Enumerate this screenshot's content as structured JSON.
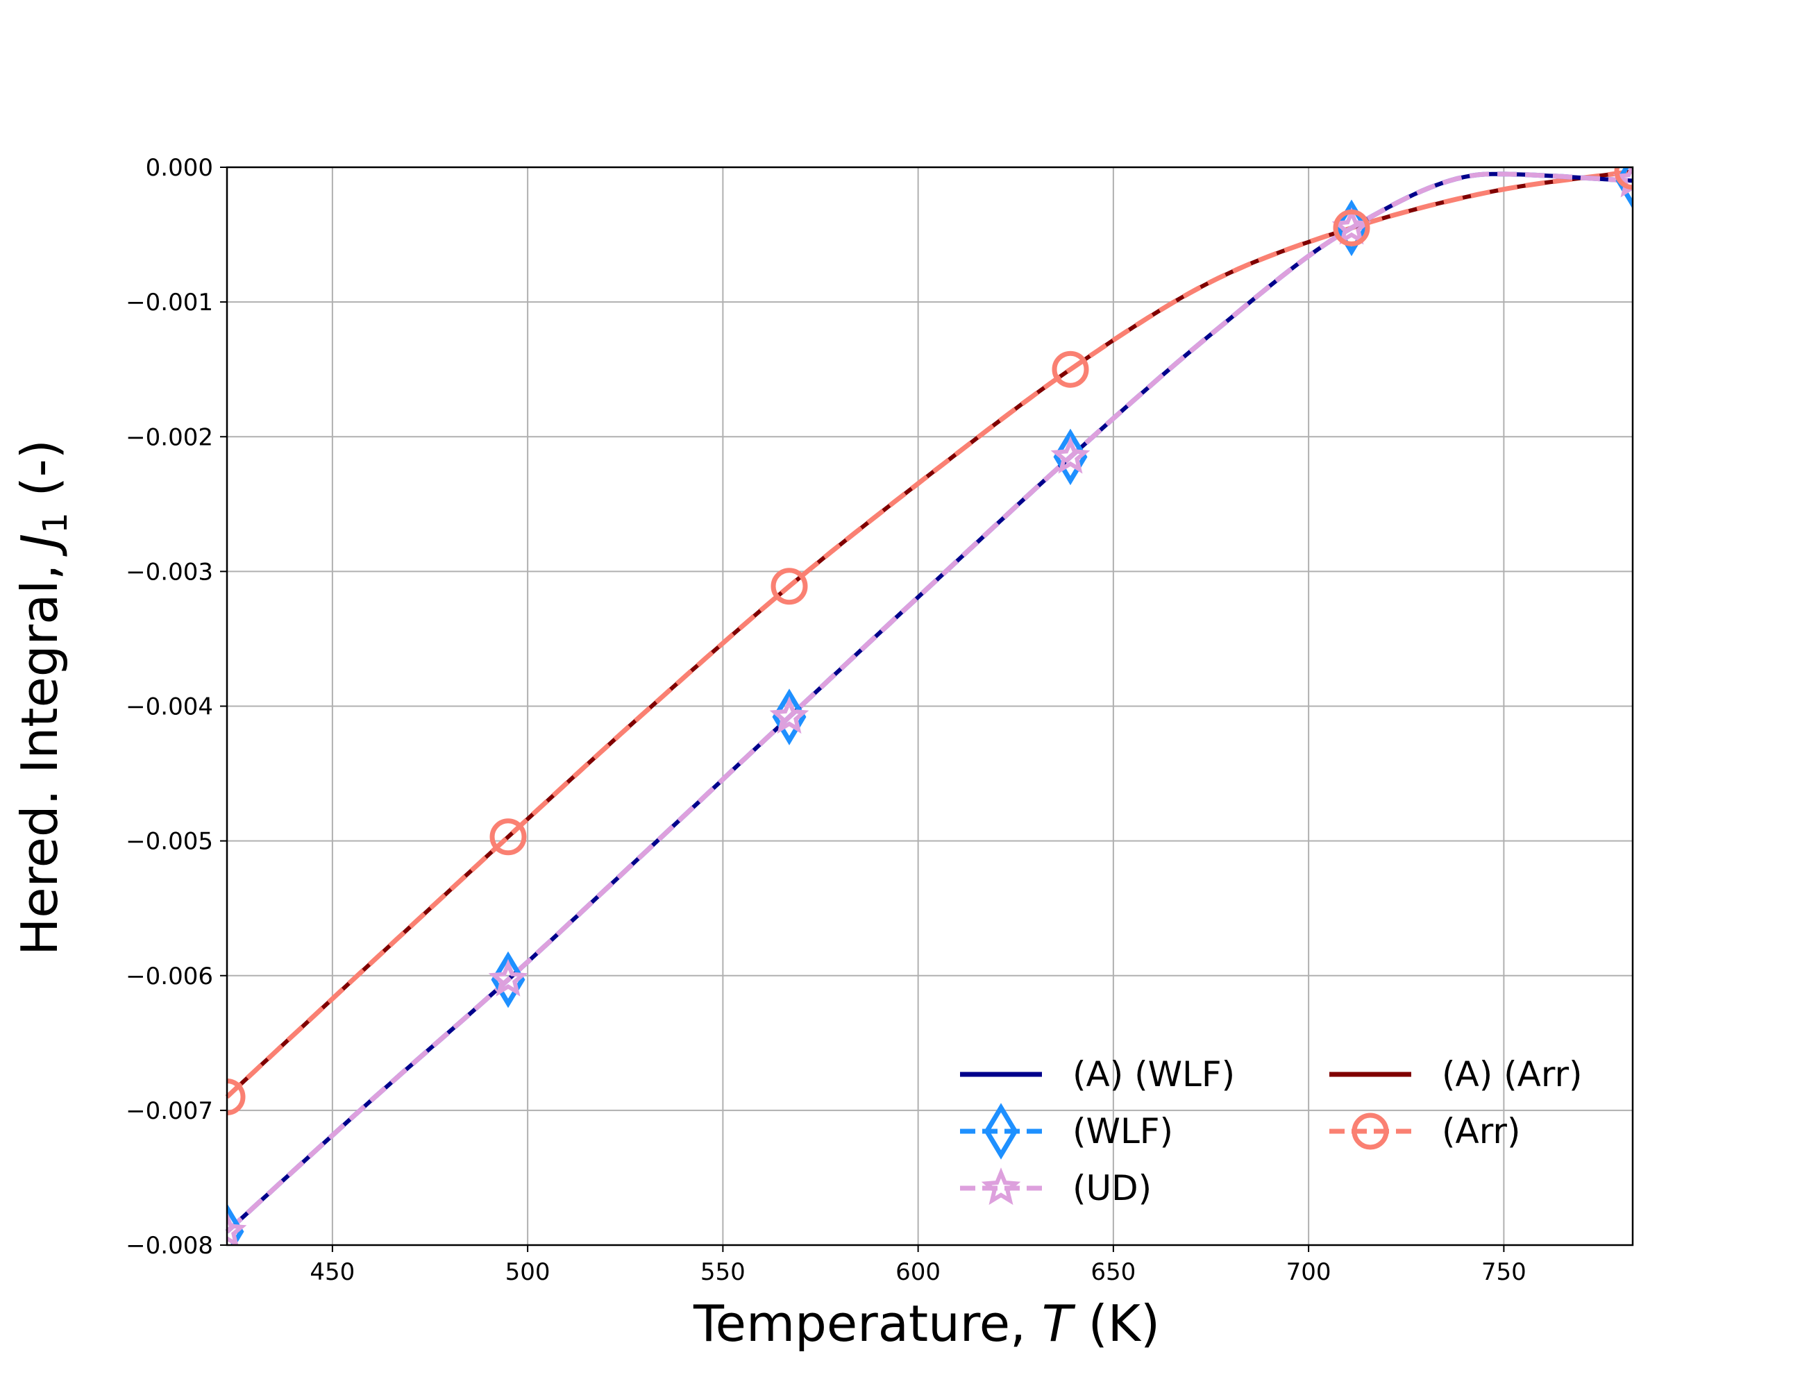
{
  "chart_data": {
    "type": "line",
    "xlabel_prefix": "Temperature, ",
    "xlabel_var": "T",
    "xlabel_suffix": " (K)",
    "ylabel_prefix": "Hered. Integral, ",
    "ylabel_var": "J",
    "ylabel_sub": "1",
    "ylabel_suffix": " (-)",
    "xlim": [
      423,
      783
    ],
    "ylim": [
      -0.008,
      0.0
    ],
    "xticks": [
      450,
      500,
      550,
      600,
      650,
      700,
      750
    ],
    "xtick_labels": [
      "450",
      "500",
      "550",
      "600",
      "650",
      "700",
      "750"
    ],
    "yticks": [
      0.0,
      -0.001,
      -0.002,
      -0.003,
      -0.004,
      -0.005,
      -0.006,
      -0.007,
      -0.008
    ],
    "ytick_labels": [
      "0.000",
      "−0.001",
      "−0.002",
      "−0.003",
      "−0.004",
      "−0.005",
      "−0.006",
      "−0.007",
      "−0.008"
    ],
    "grid": true,
    "legend_position": "lower-right",
    "legend_columns": 2,
    "series": [
      {
        "name": "(A) (WLF)",
        "color": "#00008b",
        "style": "solid",
        "marker": "none",
        "x": [
          423,
          459,
          495,
          531,
          567,
          603,
          639,
          675,
          711,
          747,
          783
        ],
        "y": [
          -0.0079,
          -0.00695,
          -0.00603,
          -0.00506,
          -0.00408,
          -0.00311,
          -0.00215,
          -0.00124,
          -0.00045,
          -5e-05,
          -0.0001
        ]
      },
      {
        "name": "(WLF)",
        "color": "#1e90ff",
        "style": "dashed",
        "marker": "diamond",
        "x": [
          423,
          459,
          495,
          531,
          567,
          603,
          639,
          675,
          711,
          747,
          783
        ],
        "y": [
          -0.0079,
          -0.00695,
          -0.00603,
          -0.00506,
          -0.00408,
          -0.00311,
          -0.00215,
          -0.00124,
          -0.00045,
          -5e-05,
          -0.0001
        ]
      },
      {
        "name": "(UD)",
        "color": "#dda0dd",
        "style": "dashed",
        "marker": "star",
        "x": [
          423,
          459,
          495,
          531,
          567,
          603,
          639,
          675,
          711,
          747,
          783
        ],
        "y": [
          -0.0079,
          -0.00695,
          -0.00603,
          -0.00506,
          -0.00408,
          -0.00311,
          -0.00215,
          -0.00124,
          -0.00045,
          -5e-05,
          -0.0001
        ]
      },
      {
        "name": "(A) (Arr)",
        "color": "#800000",
        "style": "solid",
        "marker": "none",
        "x": [
          423,
          459,
          495,
          531,
          567,
          603,
          639,
          675,
          711,
          747,
          783
        ],
        "y": [
          -0.0069,
          -0.00593,
          -0.00497,
          -0.00402,
          -0.00311,
          -0.00228,
          -0.0015,
          -0.00085,
          -0.00045,
          -0.00018,
          -3e-05
        ]
      },
      {
        "name": "(Arr)",
        "color": "#fa8072",
        "style": "dashed",
        "marker": "circle",
        "x": [
          423,
          459,
          495,
          531,
          567,
          603,
          639,
          675,
          711,
          747,
          783
        ],
        "y": [
          -0.0069,
          -0.00593,
          -0.00497,
          -0.00402,
          -0.00311,
          -0.00228,
          -0.0015,
          -0.00085,
          -0.00045,
          -0.00018,
          -3e-05
        ]
      }
    ],
    "marker_x": [
      423,
      495,
      567,
      639,
      711,
      783
    ]
  }
}
